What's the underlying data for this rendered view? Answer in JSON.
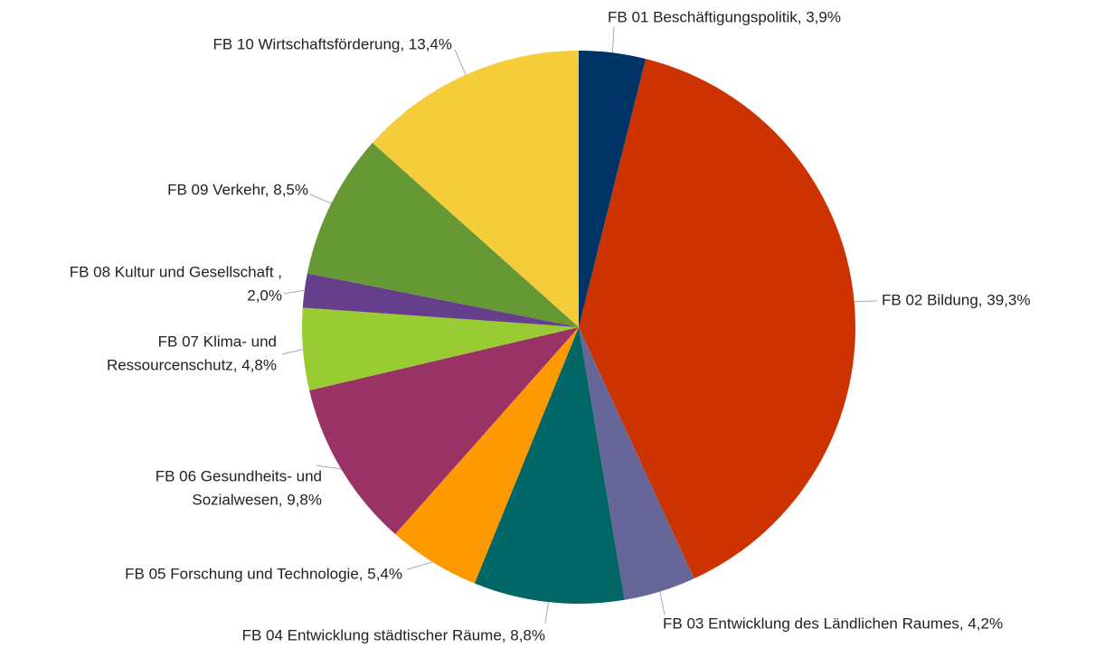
{
  "chart_data": {
    "type": "pie",
    "values": [
      3.9,
      39.3,
      4.2,
      8.8,
      5.4,
      9.8,
      4.8,
      2.0,
      8.5,
      13.4
    ],
    "value_labels": [
      [
        "FB 01 Beschäftigungspolitik, 3,9%"
      ],
      [
        "FB 02 Bildung, 39,3%"
      ],
      [
        "FB 03 Entwicklung des Ländlichen Raumes, 4,2%"
      ],
      [
        "FB 04 Entwicklung städtischer Räume, 8,8%"
      ],
      [
        "FB 05 Forschung und Technologie, 5,4%"
      ],
      [
        "FB 06 Gesundheits- und",
        "Sozialwesen, 9,8%"
      ],
      [
        "FB 07 Klima- und",
        "Ressourcenschutz, 4,8%"
      ],
      [
        "FB 08 Kultur und Gesellschaft ,",
        "2,0%"
      ],
      [
        "FB 09 Verkehr, 8,5%"
      ],
      [
        "FB 10 Wirtschaftsförderung, 13,4%"
      ]
    ],
    "colors": [
      "#003366",
      "#cc3300",
      "#666699",
      "#006666",
      "#ff9900",
      "#993366",
      "#99cc33",
      "#663f8c",
      "#669933",
      "#f5cd3b"
    ]
  }
}
